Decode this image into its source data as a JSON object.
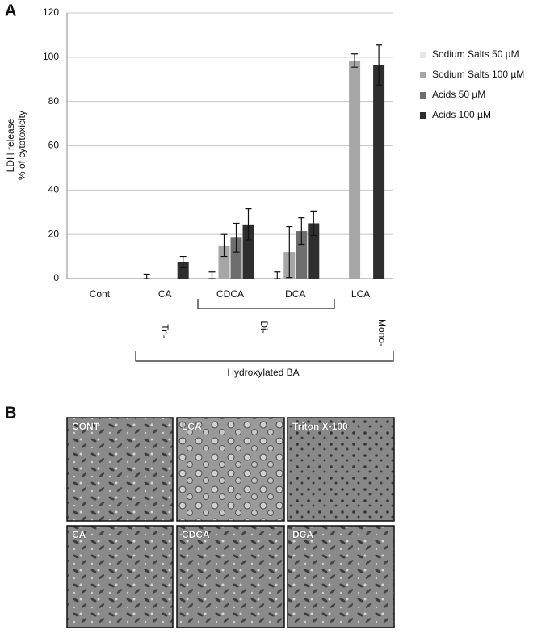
{
  "panels": {
    "a": "A",
    "b": "B"
  },
  "chart_data": {
    "type": "bar",
    "ylabel": [
      "LDH release",
      "% of cytotoxicity"
    ],
    "categories": [
      "Cont",
      "CA",
      "CDCA",
      "DCA",
      "LCA"
    ],
    "series": [
      {
        "name": "Sodium Salts 50 µM",
        "color": "#e6e6e6",
        "values": [
          0,
          0,
          0,
          0,
          0
        ],
        "errors": [
          null,
          2,
          3,
          3,
          null
        ]
      },
      {
        "name": "Sodium Salts 100 µM",
        "color": "#a6a6a6",
        "values": [
          0,
          0,
          15,
          12,
          98.5
        ],
        "errors": [
          null,
          null,
          5,
          11.5,
          3
        ]
      },
      {
        "name": "Acids 50 µM",
        "color": "#6e6e6e",
        "values": [
          0,
          0,
          18.5,
          21.5,
          0
        ],
        "errors": [
          null,
          null,
          6.5,
          6,
          null
        ]
      },
      {
        "name": "Acids 100 µM",
        "color": "#2e2e2e",
        "values": [
          0,
          7.5,
          24.5,
          25,
          96.5
        ],
        "errors": [
          null,
          2.5,
          7,
          5.5,
          9
        ]
      }
    ],
    "ylim": [
      0,
      120
    ],
    "yticks": [
      0,
      20,
      40,
      60,
      80,
      100,
      120
    ],
    "grid": true,
    "groups": [
      "Tri-",
      "Di-",
      "Mono-"
    ],
    "group_label": "Hydroxylated BA"
  },
  "images": [
    "CONT",
    "LCA",
    "Triton X-100",
    "CA",
    "CDCA",
    "DCA"
  ]
}
